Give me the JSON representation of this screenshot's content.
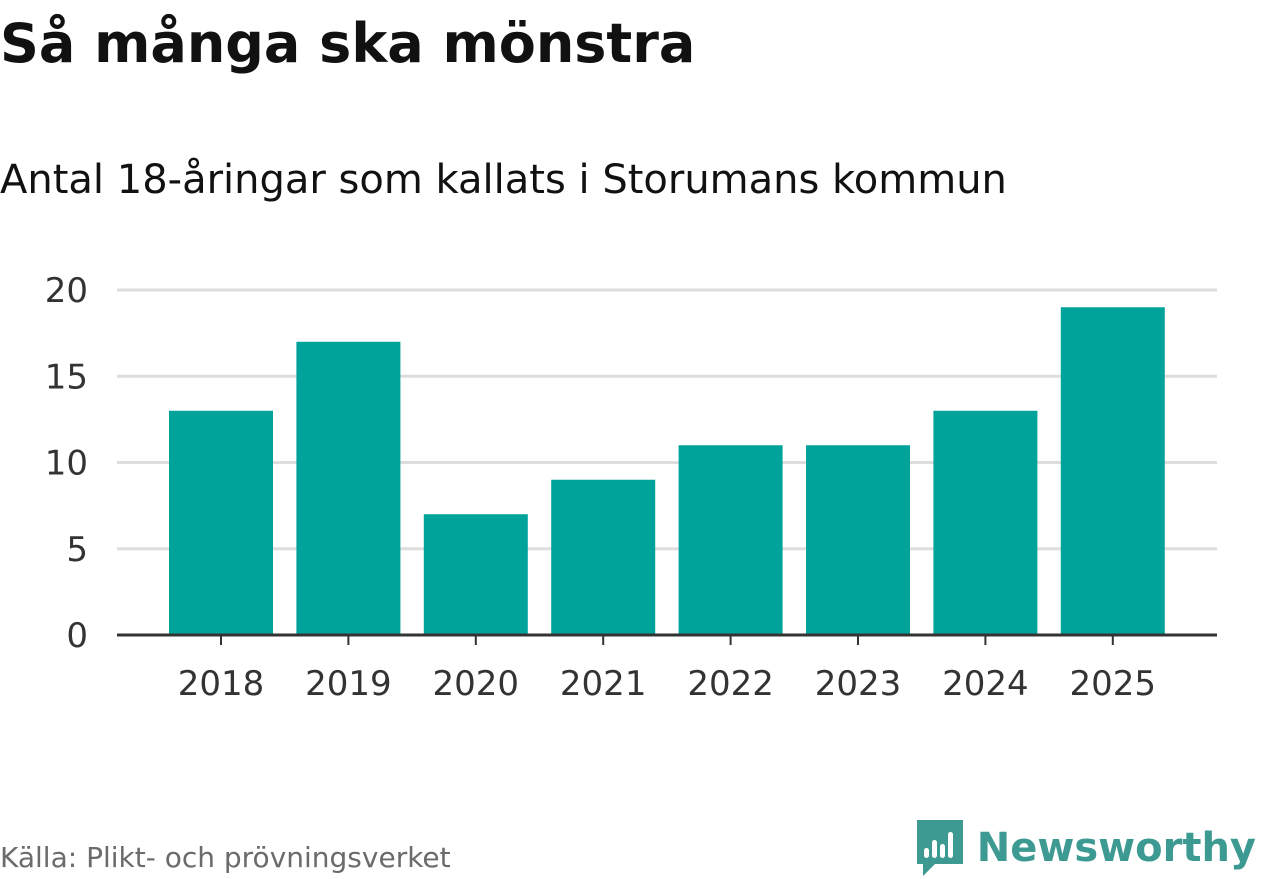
{
  "title": "Så många ska mönstra",
  "subtitle": "Antal 18-åringar som kallats i Storumans kommun",
  "source": "Källa: Plikt- och prövningsverket",
  "brand": {
    "name": "Newsworthy",
    "icon": "newsworthy-chart-bubble-icon",
    "color": "#3c9a92"
  },
  "colors": {
    "bar": "#00a39a",
    "grid": "#dddddd",
    "axis": "#333333",
    "tick_text": "#333333"
  },
  "chart_data": {
    "type": "bar",
    "title": "Så många ska mönstra",
    "subtitle": "Antal 18-åringar som kallats i Storumans kommun",
    "xlabel": "",
    "ylabel": "",
    "categories": [
      "2018",
      "2019",
      "2020",
      "2021",
      "2022",
      "2023",
      "2024",
      "2025"
    ],
    "values": [
      13,
      17,
      7,
      9,
      11,
      11,
      13,
      19
    ],
    "ylim": [
      0,
      20
    ],
    "yticks": [
      0,
      5,
      10,
      15,
      20
    ],
    "ytick_labels": [
      "0",
      "5",
      "10",
      "15",
      "20"
    ],
    "grid": true,
    "legend": false
  }
}
